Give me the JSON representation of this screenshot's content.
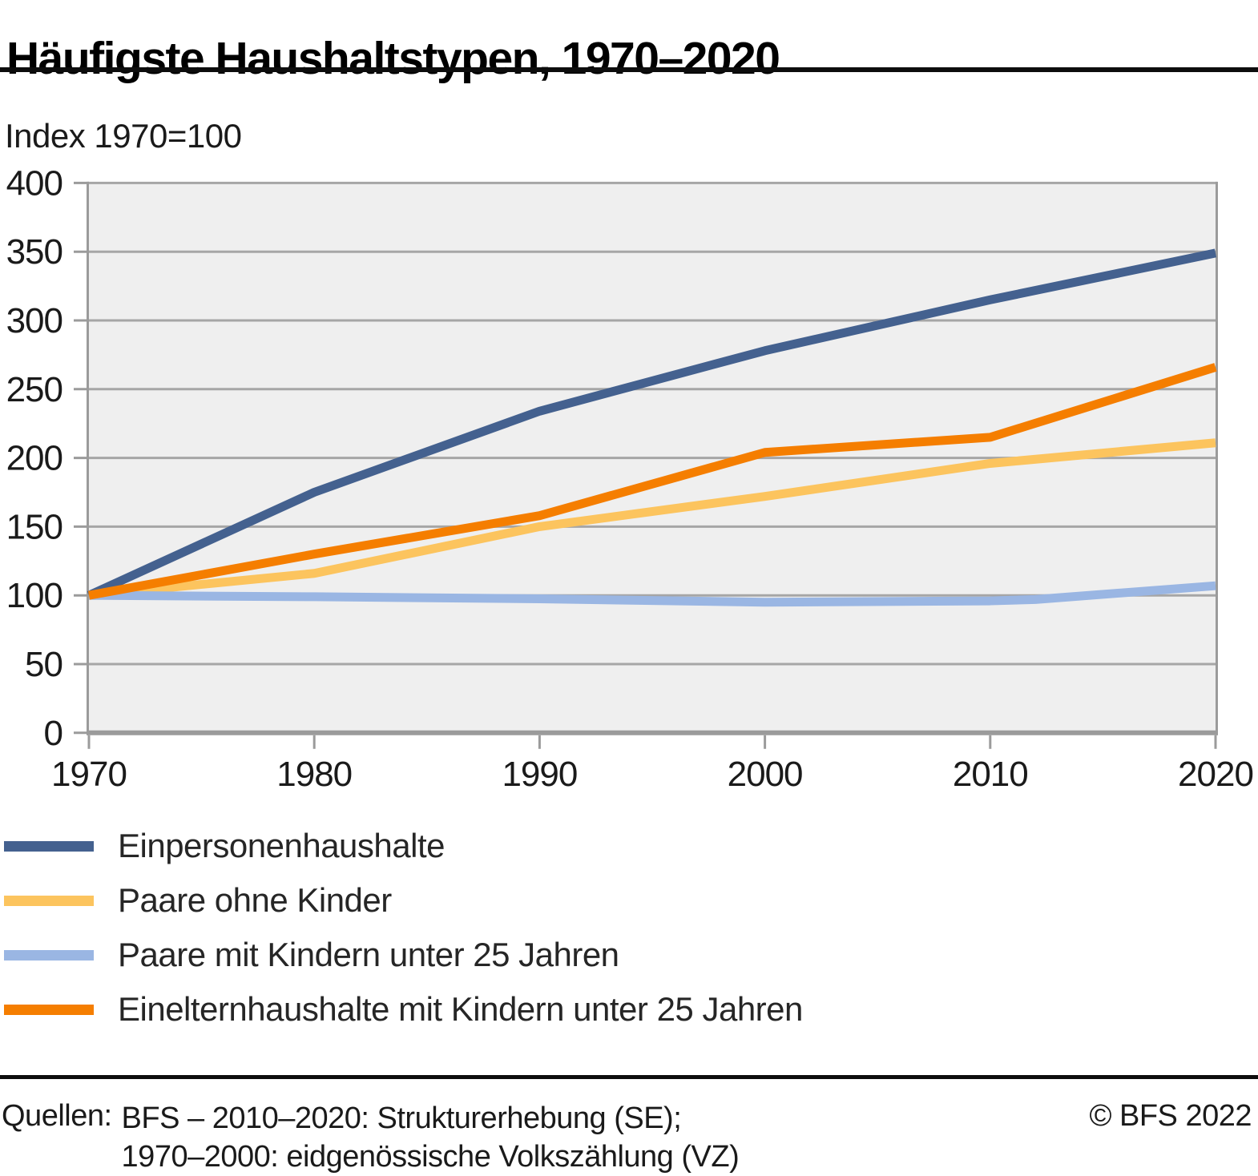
{
  "header": {
    "title": "Häufigste Haushaltstypen, 1970–2020"
  },
  "subtitle": "Index 1970=100",
  "chart_data": {
    "type": "line",
    "title": "Häufigste Haushaltstypen, 1970–2020",
    "index_note": "Index 1970=100",
    "xlim": [
      1970,
      2020
    ],
    "ylim": [
      0,
      400
    ],
    "x_ticks": [
      1970,
      1980,
      1990,
      2000,
      2010,
      2020
    ],
    "y_ticks": [
      0,
      50,
      100,
      150,
      200,
      250,
      300,
      350,
      400
    ],
    "grid": "horizontal",
    "legend_position": "bottom-left",
    "colors": {
      "plot_background": "#efefef",
      "gridline": "#a6a6a6",
      "axis": "#9b9b9b",
      "tick_text": "#1a1a1a"
    },
    "series": [
      {
        "name": "Einpersonenhaushalte",
        "color": "#44618f",
        "x": [
          1970,
          1980,
          1990,
          2000,
          2010,
          2020
        ],
        "values": [
          100,
          175,
          234,
          278,
          315,
          349
        ]
      },
      {
        "name": "Paare ohne Kinder",
        "color": "#fcc45e",
        "x": [
          1970,
          1980,
          1990,
          2000,
          2010,
          2020
        ],
        "values": [
          100,
          116,
          150,
          172,
          196,
          211
        ]
      },
      {
        "name": "Paare mit Kindern unter 25 Jahren",
        "color": "#9ab6e3",
        "x": [
          1970,
          1980,
          1990,
          2000,
          2010,
          2012,
          2020
        ],
        "values": [
          100,
          99,
          97.5,
          95,
          96,
          97,
          107
        ]
      },
      {
        "name": "Einelternhaushalte mit Kindern unter 25 Jahren",
        "color": "#f57e00",
        "x": [
          1970,
          1980,
          1990,
          2000,
          2010,
          2020
        ],
        "values": [
          100,
          130,
          158,
          204,
          215,
          266
        ]
      }
    ]
  },
  "footer": {
    "sources_label": "Quellen:",
    "source_line1": "BFS – 2010–2020: Strukturerhebung (SE);",
    "source_line2": "1970–2000: eidgenössische Volkszählung (VZ)",
    "copyright": "© BFS 2022"
  }
}
